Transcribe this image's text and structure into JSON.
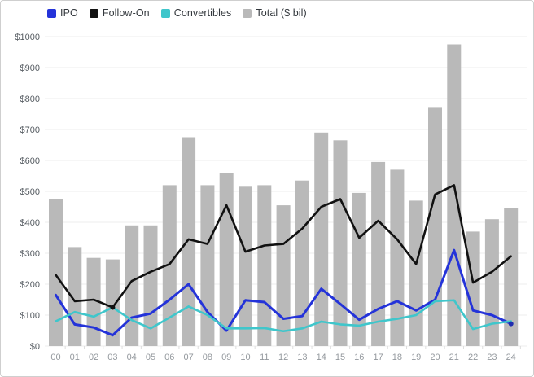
{
  "legend": [
    {
      "label": "IPO",
      "color": "#2433d9"
    },
    {
      "label": "Follow-On",
      "color": "#111111"
    },
    {
      "label": "Convertibles",
      "color": "#3fc6cb"
    },
    {
      "label": "Total ($ bil)",
      "color": "#b9b9b9"
    }
  ],
  "colors": {
    "ipo_line": "#2433d9",
    "follow_on_line": "#111111",
    "convertibles_line": "#3fc6cb",
    "total_bar": "#b9b9b9",
    "gridline": "#ededed",
    "tick": "#dddddd",
    "end_dot": "#1f2db0",
    "marker_dot": "#111111"
  },
  "chart_data": {
    "type": "bar+line",
    "title": "",
    "xlabel": "",
    "ylabel": "",
    "ylim": [
      0,
      1000
    ],
    "grid": true,
    "legend_position": "top-left",
    "y_ticks": [
      "$0",
      "$100",
      "$200",
      "$300",
      "$400",
      "$500",
      "$600",
      "$700",
      "$800",
      "$900",
      "$1000"
    ],
    "y_tick_values": [
      0,
      100,
      200,
      300,
      400,
      500,
      600,
      700,
      800,
      900,
      1000
    ],
    "categories": [
      "00",
      "01",
      "02",
      "03",
      "04",
      "05",
      "06",
      "07",
      "08",
      "09",
      "10",
      "11",
      "12",
      "13",
      "14",
      "15",
      "16",
      "17",
      "18",
      "19",
      "20",
      "21",
      "22",
      "23",
      "24"
    ],
    "bars": {
      "name": "Total ($ bil)",
      "values": [
        475,
        320,
        285,
        280,
        390,
        390,
        520,
        675,
        520,
        560,
        515,
        520,
        455,
        535,
        690,
        665,
        495,
        595,
        570,
        470,
        770,
        975,
        370,
        410,
        445
      ]
    },
    "series": [
      {
        "name": "IPO",
        "values": [
          165,
          70,
          60,
          35,
          92,
          105,
          150,
          200,
          110,
          50,
          148,
          142,
          88,
          97,
          185,
          136,
          85,
          120,
          145,
          115,
          150,
          310,
          115,
          100,
          72
        ]
      },
      {
        "name": "Follow-On",
        "values": [
          230,
          145,
          150,
          125,
          210,
          240,
          265,
          345,
          330,
          455,
          305,
          325,
          330,
          380,
          450,
          475,
          350,
          405,
          345,
          265,
          490,
          520,
          205,
          240,
          290
        ]
      },
      {
        "name": "Convertibles",
        "values": [
          80,
          110,
          95,
          125,
          84,
          57,
          92,
          128,
          100,
          57,
          57,
          58,
          48,
          57,
          79,
          70,
          66,
          79,
          88,
          100,
          145,
          148,
          55,
          72,
          80
        ]
      }
    ],
    "point_markers": [
      {
        "series": "Follow-On",
        "category": "03"
      },
      {
        "series": "IPO",
        "category": "24"
      }
    ]
  }
}
